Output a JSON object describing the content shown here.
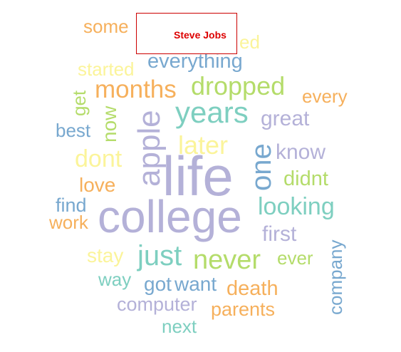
{
  "chart_data": {
    "type": "wordcloud",
    "title": "Steve Jobs",
    "palette": {
      "purple": "#b4b1d8",
      "teal": "#7ecfc0",
      "orange": "#f6b05c",
      "green": "#b4dc6a",
      "blue": "#78a8cf",
      "yellow": "#fbf49a"
    },
    "words": [
      {
        "text": "life",
        "color": "purple",
        "orientation": "horizontal"
      },
      {
        "text": "college",
        "color": "purple",
        "orientation": "horizontal"
      },
      {
        "text": "years",
        "color": "teal",
        "orientation": "horizontal"
      },
      {
        "text": "apple",
        "color": "purple",
        "orientation": "vertical"
      },
      {
        "text": "one",
        "color": "blue",
        "orientation": "vertical"
      },
      {
        "text": "dropped",
        "color": "green",
        "orientation": "horizontal"
      },
      {
        "text": "months",
        "color": "orange",
        "orientation": "horizontal"
      },
      {
        "text": "never",
        "color": "green",
        "orientation": "horizontal"
      },
      {
        "text": "just",
        "color": "teal",
        "orientation": "horizontal"
      },
      {
        "text": "looking",
        "color": "teal",
        "orientation": "horizontal"
      },
      {
        "text": "later",
        "color": "yellow",
        "orientation": "horizontal"
      },
      {
        "text": "dont",
        "color": "yellow",
        "orientation": "horizontal"
      },
      {
        "text": "everything",
        "color": "blue",
        "orientation": "horizontal"
      },
      {
        "text": "great",
        "color": "purple",
        "orientation": "horizontal"
      },
      {
        "text": "know",
        "color": "purple",
        "orientation": "horizontal"
      },
      {
        "text": "didnt",
        "color": "green",
        "orientation": "horizontal"
      },
      {
        "text": "first",
        "color": "purple",
        "orientation": "horizontal"
      },
      {
        "text": "death",
        "color": "orange",
        "orientation": "horizontal"
      },
      {
        "text": "parents",
        "color": "orange",
        "orientation": "horizontal"
      },
      {
        "text": "company",
        "color": "blue",
        "orientation": "vertical"
      },
      {
        "text": "want",
        "color": "blue",
        "orientation": "horizontal"
      },
      {
        "text": "got",
        "color": "blue",
        "orientation": "horizontal"
      },
      {
        "text": "computer",
        "color": "purple",
        "orientation": "horizontal"
      },
      {
        "text": "every",
        "color": "orange",
        "orientation": "horizontal"
      },
      {
        "text": "some",
        "color": "orange",
        "orientation": "horizontal"
      },
      {
        "text": "started",
        "color": "yellow",
        "orientation": "horizontal"
      },
      {
        "text": "ed",
        "color": "yellow",
        "orientation": "horizontal"
      },
      {
        "text": "get",
        "color": "green",
        "orientation": "vertical"
      },
      {
        "text": "now",
        "color": "green",
        "orientation": "vertical"
      },
      {
        "text": "best",
        "color": "blue",
        "orientation": "horizontal"
      },
      {
        "text": "love",
        "color": "orange",
        "orientation": "horizontal"
      },
      {
        "text": "find",
        "color": "blue",
        "orientation": "horizontal"
      },
      {
        "text": "work",
        "color": "orange",
        "orientation": "horizontal"
      },
      {
        "text": "stay",
        "color": "yellow",
        "orientation": "horizontal"
      },
      {
        "text": "way",
        "color": "teal",
        "orientation": "horizontal"
      },
      {
        "text": "ever",
        "color": "green",
        "orientation": "horizontal"
      },
      {
        "text": "next",
        "color": "teal",
        "orientation": "horizontal"
      }
    ]
  }
}
